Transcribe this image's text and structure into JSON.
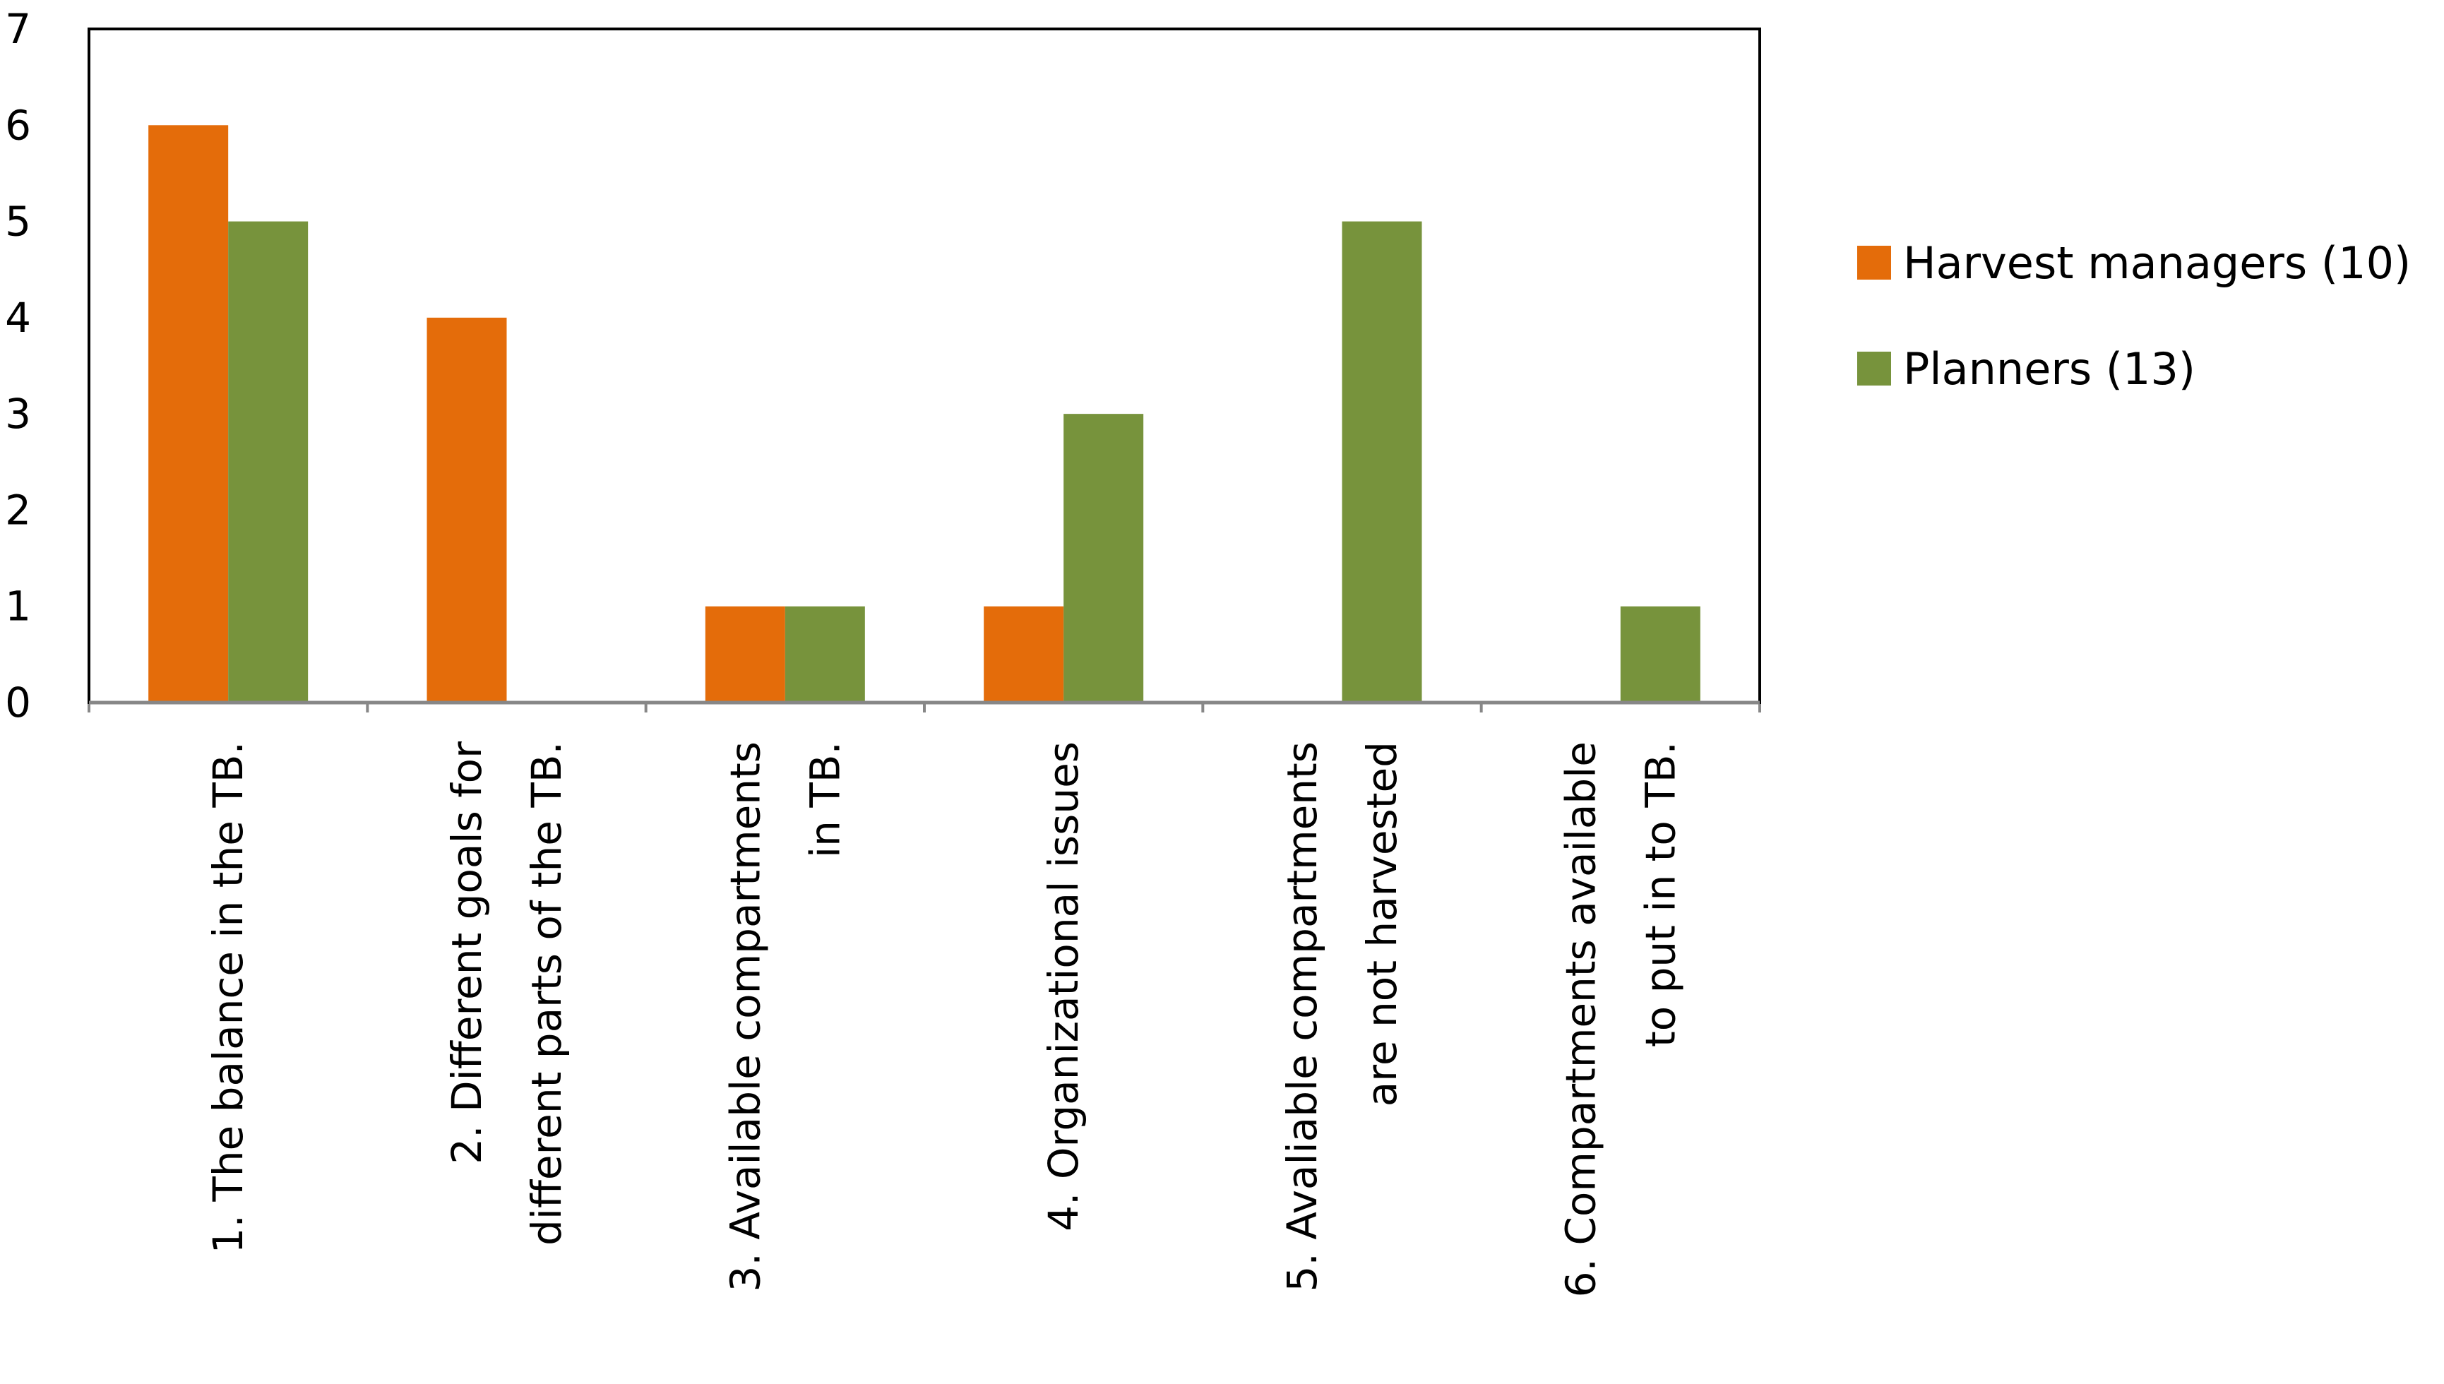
{
  "chart_data": {
    "type": "bar",
    "title": "",
    "xlabel": "",
    "ylabel": "",
    "ylim": [
      0,
      7
    ],
    "yticks": [
      0,
      1,
      2,
      3,
      4,
      5,
      6,
      7
    ],
    "categories": [
      [
        "1. The balance in the TB."
      ],
      [
        "2. Different goals for",
        "different parts of the TB."
      ],
      [
        "3. Available compartments",
        "in TB."
      ],
      [
        "4. Organizational issues"
      ],
      [
        "5. Avaliable compartments",
        "are not harvested"
      ],
      [
        "6. Compartments available",
        "to put in to TB."
      ]
    ],
    "series": [
      {
        "name": "Harvest managers (10)",
        "color": "#e46c0a",
        "values": [
          6,
          4,
          1,
          1,
          0,
          0
        ]
      },
      {
        "name": "Planners (13)",
        "color": "#77933c",
        "values": [
          5,
          0,
          1,
          3,
          5,
          1
        ]
      }
    ],
    "legend_position": "right"
  }
}
